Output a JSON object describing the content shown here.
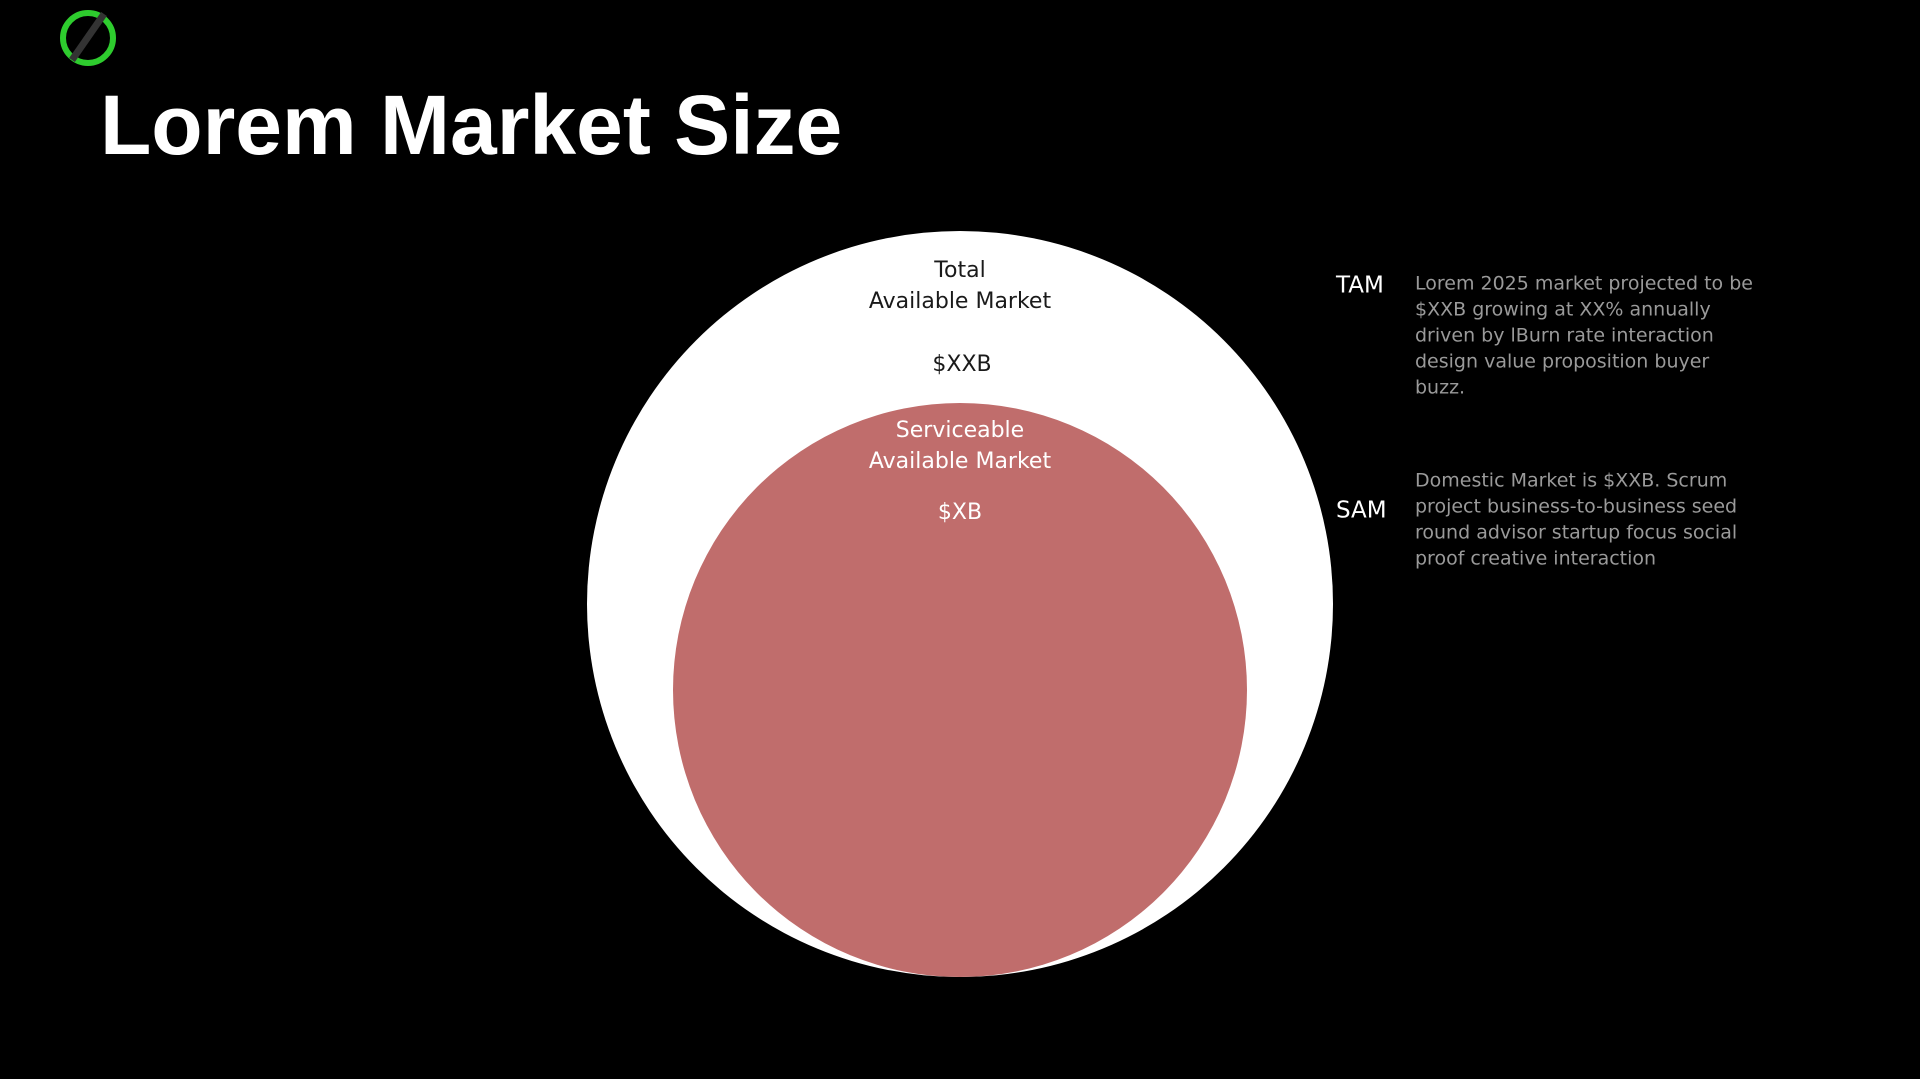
{
  "header": {
    "title": "Lorem Market Size"
  },
  "diagram": {
    "tam": {
      "label_lines": [
        "Total",
        "Available Market"
      ],
      "value": "$XXB"
    },
    "sam": {
      "label_lines": [
        "Serviceable",
        "Available Market"
      ],
      "value": "$XB"
    }
  },
  "descriptions": [
    {
      "tag": "TAM",
      "lines": [
        "Lorem 2025 market projected to be",
        "$XXB growing at XX% annually",
        "driven by lBurn rate interaction",
        "design value proposition buyer",
        "buzz."
      ]
    },
    {
      "tag": "SAM",
      "lines": [
        "Domestic Market is $XXB. Scrum",
        "project business-to-business seed",
        "round advisor startup focus social",
        "proof creative interaction"
      ]
    }
  ]
}
